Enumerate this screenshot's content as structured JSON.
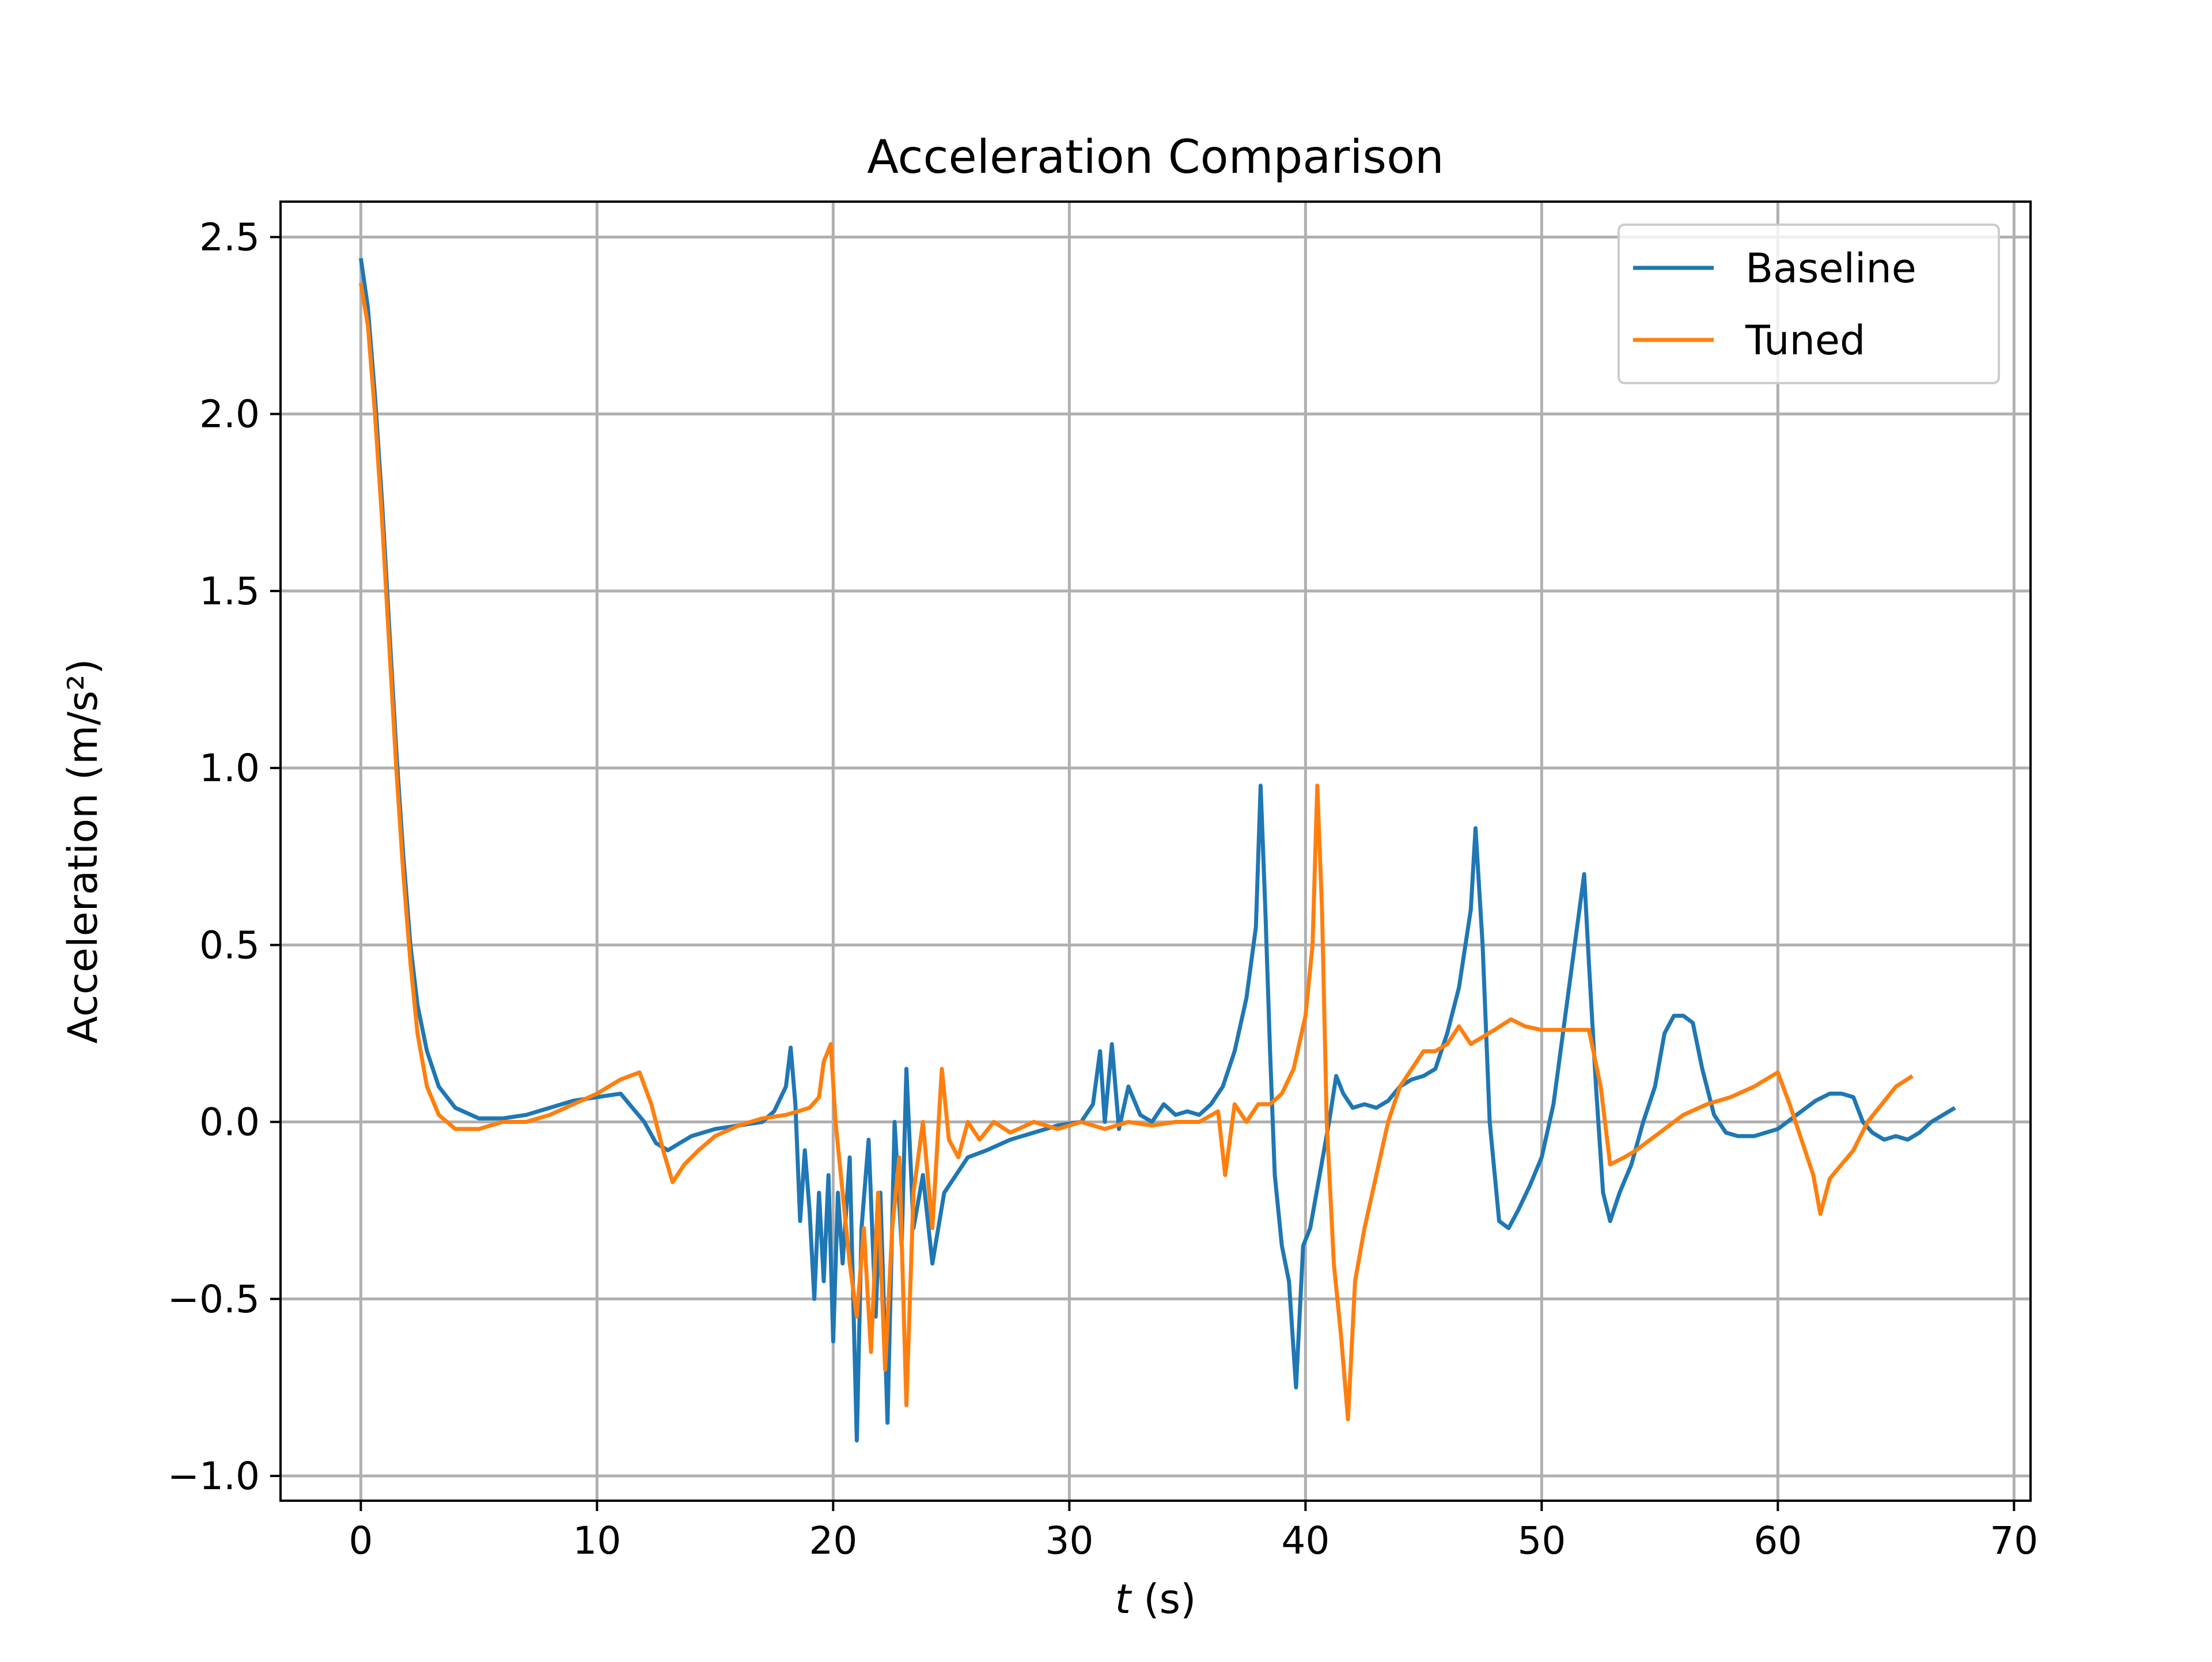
{
  "chart_data": {
    "type": "line",
    "title": "Acceleration Comparison",
    "xlabel_var": "t",
    "xlabel_unit": " (s)",
    "ylabel": "Acceleration (m/s²)",
    "xlim": [
      -3.4,
      70.7
    ],
    "ylim": [
      -1.07,
      2.6
    ],
    "xticks": [
      0,
      10,
      20,
      30,
      40,
      50,
      60,
      70
    ],
    "yticks": [
      -1.0,
      -0.5,
      0.0,
      0.5,
      1.0,
      1.5,
      2.0,
      2.5
    ],
    "xtick_labels": [
      "0",
      "10",
      "20",
      "30",
      "40",
      "50",
      "60",
      "70"
    ],
    "ytick_labels": [
      "−1.0",
      "−0.5",
      "0.0",
      "0.5",
      "1.0",
      "1.5",
      "2.0",
      "2.5"
    ],
    "grid": true,
    "legend_position": "top-right",
    "series": [
      {
        "name": "Baseline",
        "color": "#1f77b4",
        "points": [
          [
            0.0,
            2.44
          ],
          [
            0.3,
            2.3
          ],
          [
            0.6,
            2.05
          ],
          [
            0.9,
            1.75
          ],
          [
            1.2,
            1.4
          ],
          [
            1.5,
            1.05
          ],
          [
            1.8,
            0.75
          ],
          [
            2.1,
            0.5
          ],
          [
            2.4,
            0.33
          ],
          [
            2.8,
            0.2
          ],
          [
            3.3,
            0.1
          ],
          [
            4.0,
            0.04
          ],
          [
            5.0,
            0.01
          ],
          [
            6.0,
            0.01
          ],
          [
            7.0,
            0.02
          ],
          [
            8.0,
            0.04
          ],
          [
            9.0,
            0.06
          ],
          [
            10.0,
            0.07
          ],
          [
            11.0,
            0.08
          ],
          [
            11.5,
            0.04
          ],
          [
            12.0,
            0.0
          ],
          [
            12.5,
            -0.06
          ],
          [
            13.0,
            -0.08
          ],
          [
            13.5,
            -0.06
          ],
          [
            14.0,
            -0.04
          ],
          [
            15.0,
            -0.02
          ],
          [
            16.0,
            -0.01
          ],
          [
            17.0,
            0.0
          ],
          [
            17.5,
            0.03
          ],
          [
            18.0,
            0.1
          ],
          [
            18.2,
            0.21
          ],
          [
            18.4,
            0.05
          ],
          [
            18.6,
            -0.28
          ],
          [
            18.8,
            -0.08
          ],
          [
            19.0,
            -0.25
          ],
          [
            19.2,
            -0.5
          ],
          [
            19.4,
            -0.2
          ],
          [
            19.6,
            -0.45
          ],
          [
            19.8,
            -0.15
          ],
          [
            20.0,
            -0.62
          ],
          [
            20.2,
            -0.2
          ],
          [
            20.4,
            -0.4
          ],
          [
            20.7,
            -0.1
          ],
          [
            21.0,
            -0.9
          ],
          [
            21.2,
            -0.3
          ],
          [
            21.5,
            -0.05
          ],
          [
            21.8,
            -0.55
          ],
          [
            22.0,
            -0.2
          ],
          [
            22.3,
            -0.85
          ],
          [
            22.6,
            0.0
          ],
          [
            22.9,
            -0.35
          ],
          [
            23.1,
            0.15
          ],
          [
            23.4,
            -0.3
          ],
          [
            23.8,
            -0.15
          ],
          [
            24.2,
            -0.4
          ],
          [
            24.7,
            -0.2
          ],
          [
            25.2,
            -0.15
          ],
          [
            25.7,
            -0.1
          ],
          [
            26.5,
            -0.08
          ],
          [
            27.5,
            -0.05
          ],
          [
            28.5,
            -0.03
          ],
          [
            29.5,
            -0.01
          ],
          [
            30.5,
            0.0
          ],
          [
            31.0,
            0.05
          ],
          [
            31.3,
            0.2
          ],
          [
            31.5,
            0.0
          ],
          [
            31.8,
            0.22
          ],
          [
            32.1,
            -0.02
          ],
          [
            32.5,
            0.1
          ],
          [
            33.0,
            0.02
          ],
          [
            33.5,
            0.0
          ],
          [
            34.0,
            0.05
          ],
          [
            34.5,
            0.02
          ],
          [
            35.0,
            0.03
          ],
          [
            35.5,
            0.02
          ],
          [
            36.0,
            0.05
          ],
          [
            36.5,
            0.1
          ],
          [
            37.0,
            0.2
          ],
          [
            37.5,
            0.35
          ],
          [
            37.9,
            0.55
          ],
          [
            38.1,
            0.95
          ],
          [
            38.3,
            0.6
          ],
          [
            38.5,
            0.2
          ],
          [
            38.7,
            -0.15
          ],
          [
            39.0,
            -0.35
          ],
          [
            39.3,
            -0.45
          ],
          [
            39.6,
            -0.75
          ],
          [
            39.9,
            -0.35
          ],
          [
            40.2,
            -0.3
          ],
          [
            40.6,
            -0.15
          ],
          [
            41.0,
            0.0
          ],
          [
            41.3,
            0.13
          ],
          [
            41.6,
            0.08
          ],
          [
            42.0,
            0.04
          ],
          [
            42.5,
            0.05
          ],
          [
            43.0,
            0.04
          ],
          [
            43.5,
            0.06
          ],
          [
            44.0,
            0.1
          ],
          [
            44.5,
            0.12
          ],
          [
            45.0,
            0.13
          ],
          [
            45.5,
            0.15
          ],
          [
            46.0,
            0.25
          ],
          [
            46.5,
            0.38
          ],
          [
            47.0,
            0.6
          ],
          [
            47.2,
            0.83
          ],
          [
            47.5,
            0.5
          ],
          [
            47.8,
            0.0
          ],
          [
            48.2,
            -0.28
          ],
          [
            48.6,
            -0.3
          ],
          [
            49.0,
            -0.25
          ],
          [
            49.5,
            -0.18
          ],
          [
            50.0,
            -0.1
          ],
          [
            50.5,
            0.05
          ],
          [
            51.0,
            0.3
          ],
          [
            51.5,
            0.55
          ],
          [
            51.8,
            0.7
          ],
          [
            52.0,
            0.45
          ],
          [
            52.3,
            0.1
          ],
          [
            52.6,
            -0.2
          ],
          [
            52.9,
            -0.28
          ],
          [
            53.3,
            -0.2
          ],
          [
            53.8,
            -0.12
          ],
          [
            54.3,
            0.0
          ],
          [
            54.8,
            0.1
          ],
          [
            55.2,
            0.25
          ],
          [
            55.6,
            0.3
          ],
          [
            56.0,
            0.3
          ],
          [
            56.4,
            0.28
          ],
          [
            56.8,
            0.15
          ],
          [
            57.3,
            0.02
          ],
          [
            57.8,
            -0.03
          ],
          [
            58.3,
            -0.04
          ],
          [
            59.0,
            -0.04
          ],
          [
            60.0,
            -0.02
          ],
          [
            61.0,
            0.03
          ],
          [
            61.6,
            0.06
          ],
          [
            62.2,
            0.08
          ],
          [
            62.7,
            0.08
          ],
          [
            63.2,
            0.07
          ],
          [
            63.6,
            0.0
          ],
          [
            64.0,
            -0.03
          ],
          [
            64.5,
            -0.05
          ],
          [
            65.0,
            -0.04
          ],
          [
            65.5,
            -0.05
          ],
          [
            66.0,
            -0.03
          ],
          [
            66.5,
            0.0
          ],
          [
            67.0,
            0.02
          ],
          [
            67.5,
            0.04
          ]
        ]
      },
      {
        "name": "Tuned",
        "color": "#ff7f0e",
        "points": [
          [
            0.0,
            2.37
          ],
          [
            0.3,
            2.25
          ],
          [
            0.6,
            2.0
          ],
          [
            0.9,
            1.7
          ],
          [
            1.2,
            1.35
          ],
          [
            1.5,
            1.0
          ],
          [
            1.8,
            0.7
          ],
          [
            2.1,
            0.45
          ],
          [
            2.4,
            0.25
          ],
          [
            2.8,
            0.1
          ],
          [
            3.3,
            0.02
          ],
          [
            4.0,
            -0.02
          ],
          [
            5.0,
            -0.02
          ],
          [
            6.0,
            0.0
          ],
          [
            7.0,
            0.0
          ],
          [
            8.0,
            0.02
          ],
          [
            9.0,
            0.05
          ],
          [
            10.0,
            0.08
          ],
          [
            11.0,
            0.12
          ],
          [
            11.8,
            0.14
          ],
          [
            12.3,
            0.05
          ],
          [
            12.8,
            -0.08
          ],
          [
            13.2,
            -0.17
          ],
          [
            13.7,
            -0.12
          ],
          [
            14.3,
            -0.08
          ],
          [
            15.0,
            -0.04
          ],
          [
            16.0,
            -0.01
          ],
          [
            17.0,
            0.01
          ],
          [
            18.0,
            0.02
          ],
          [
            19.0,
            0.04
          ],
          [
            19.4,
            0.07
          ],
          [
            19.6,
            0.17
          ],
          [
            19.9,
            0.22
          ],
          [
            20.1,
            0.0
          ],
          [
            20.4,
            -0.2
          ],
          [
            20.7,
            -0.4
          ],
          [
            21.0,
            -0.55
          ],
          [
            21.3,
            -0.3
          ],
          [
            21.6,
            -0.65
          ],
          [
            21.9,
            -0.2
          ],
          [
            22.2,
            -0.7
          ],
          [
            22.5,
            -0.3
          ],
          [
            22.8,
            -0.1
          ],
          [
            23.1,
            -0.8
          ],
          [
            23.4,
            -0.2
          ],
          [
            23.8,
            0.0
          ],
          [
            24.2,
            -0.3
          ],
          [
            24.6,
            0.15
          ],
          [
            24.9,
            -0.05
          ],
          [
            25.3,
            -0.1
          ],
          [
            25.7,
            0.0
          ],
          [
            26.2,
            -0.05
          ],
          [
            26.8,
            0.0
          ],
          [
            27.5,
            -0.03
          ],
          [
            28.5,
            0.0
          ],
          [
            29.5,
            -0.02
          ],
          [
            30.5,
            0.0
          ],
          [
            31.5,
            -0.02
          ],
          [
            32.5,
            0.0
          ],
          [
            33.5,
            -0.01
          ],
          [
            34.5,
            0.0
          ],
          [
            35.5,
            0.0
          ],
          [
            36.3,
            0.03
          ],
          [
            36.6,
            -0.15
          ],
          [
            37.0,
            0.05
          ],
          [
            37.5,
            0.0
          ],
          [
            38.0,
            0.05
          ],
          [
            38.5,
            0.05
          ],
          [
            39.0,
            0.08
          ],
          [
            39.5,
            0.15
          ],
          [
            40.0,
            0.3
          ],
          [
            40.3,
            0.5
          ],
          [
            40.5,
            0.95
          ],
          [
            40.7,
            0.6
          ],
          [
            40.9,
            0.0
          ],
          [
            41.2,
            -0.4
          ],
          [
            41.5,
            -0.6
          ],
          [
            41.8,
            -0.84
          ],
          [
            42.1,
            -0.45
          ],
          [
            42.5,
            -0.3
          ],
          [
            43.0,
            -0.15
          ],
          [
            43.5,
            0.0
          ],
          [
            44.0,
            0.1
          ],
          [
            44.5,
            0.15
          ],
          [
            45.0,
            0.2
          ],
          [
            45.5,
            0.2
          ],
          [
            46.0,
            0.22
          ],
          [
            46.5,
            0.27
          ],
          [
            47.0,
            0.22
          ],
          [
            47.5,
            0.24
          ],
          [
            48.0,
            0.26
          ],
          [
            48.7,
            0.29
          ],
          [
            49.3,
            0.27
          ],
          [
            50.0,
            0.26
          ],
          [
            51.0,
            0.26
          ],
          [
            52.0,
            0.26
          ],
          [
            52.5,
            0.1
          ],
          [
            52.9,
            -0.12
          ],
          [
            53.5,
            -0.1
          ],
          [
            54.0,
            -0.08
          ],
          [
            55.0,
            -0.03
          ],
          [
            56.0,
            0.02
          ],
          [
            57.0,
            0.05
          ],
          [
            58.0,
            0.07
          ],
          [
            59.0,
            0.1
          ],
          [
            59.5,
            0.12
          ],
          [
            60.0,
            0.14
          ],
          [
            60.5,
            0.05
          ],
          [
            61.0,
            -0.05
          ],
          [
            61.5,
            -0.15
          ],
          [
            61.8,
            -0.26
          ],
          [
            62.2,
            -0.16
          ],
          [
            62.7,
            -0.12
          ],
          [
            63.2,
            -0.08
          ],
          [
            63.8,
            0.0
          ],
          [
            64.4,
            0.05
          ],
          [
            65.0,
            0.1
          ],
          [
            65.7,
            0.13
          ]
        ]
      }
    ]
  }
}
